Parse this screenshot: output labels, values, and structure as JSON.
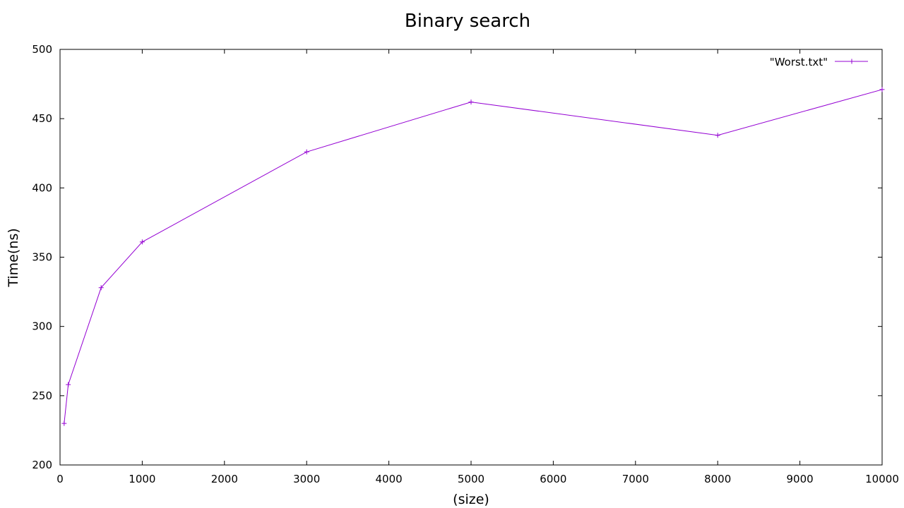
{
  "chart_data": {
    "type": "line",
    "title": "Binary search",
    "xlabel": "(size)",
    "ylabel": "Time(ns)",
    "xlim": [
      0,
      10000
    ],
    "ylim": [
      200,
      500
    ],
    "x_ticks": [
      0,
      1000,
      2000,
      3000,
      4000,
      5000,
      6000,
      7000,
      8000,
      9000,
      10000
    ],
    "y_ticks": [
      200,
      250,
      300,
      350,
      400,
      450,
      500
    ],
    "x_tick_labels": [
      "0",
      "1000",
      "2000",
      "3000",
      "4000",
      "5000",
      "6000",
      "7000",
      "8000",
      "9000",
      "10000"
    ],
    "y_tick_labels": [
      "200",
      "250",
      "300",
      "350",
      "400",
      "450",
      "500"
    ],
    "grid": false,
    "legend_position": "top-right",
    "series": [
      {
        "name": "\"Worst.txt\"",
        "color": "#9400d3",
        "marker": "plus",
        "x": [
          50,
          100,
          500,
          1000,
          3000,
          5000,
          8000,
          10000
        ],
        "y": [
          230,
          258,
          328,
          361,
          426,
          462,
          438,
          471
        ]
      }
    ]
  }
}
